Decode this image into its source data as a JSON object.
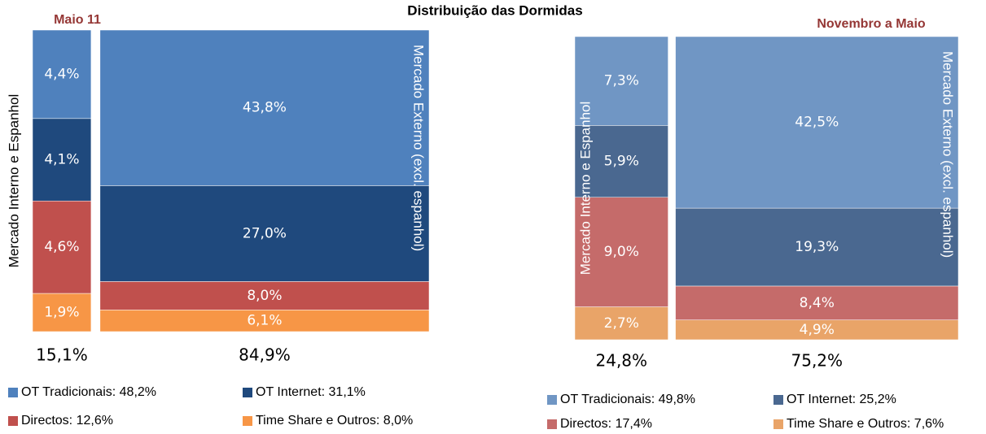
{
  "title": "Distribuição das Dormidas",
  "chart_data": [
    {
      "type": "marimekko",
      "title": "Maio 11",
      "categories": [
        "Mercado Interno e Espanhol",
        "Mercado Externo (excl. espanhol)"
      ],
      "widths": [
        15.1,
        84.9
      ],
      "width_labels": [
        "15,1%",
        "84,9%"
      ],
      "series": [
        {
          "name": "OT Tradicionais: 48,2%",
          "color": "#4f81bd",
          "values": [
            4.4,
            43.8
          ],
          "value_labels": [
            "4,4%",
            "43,8%"
          ]
        },
        {
          "name": "OT Internet: 31,1%",
          "color": "#1f497d",
          "values": [
            4.1,
            27.0
          ],
          "value_labels": [
            "4,1%",
            "27,0%"
          ]
        },
        {
          "name": "Directos: 12,6%",
          "color": "#c0504d",
          "values": [
            4.6,
            8.0
          ],
          "value_labels": [
            "4,6%",
            "8,0%"
          ]
        },
        {
          "name": "Time Share e Outros: 8,0%",
          "color": "#f79646",
          "values": [
            1.9,
            6.1
          ],
          "value_labels": [
            "1,9%",
            "6,1%"
          ]
        }
      ]
    },
    {
      "type": "marimekko",
      "title": "Novembro a Maio",
      "categories": [
        "Mercado Interno e Espanhol",
        "Mercado Externo (excl. espanhol)"
      ],
      "widths": [
        24.8,
        75.2
      ],
      "width_labels": [
        "24,8%",
        "75,2%"
      ],
      "series": [
        {
          "name": "OT Tradicionais: 49,8%",
          "color": "#7096c4",
          "values": [
            7.3,
            42.5
          ],
          "value_labels": [
            "7,3%",
            "42,5%"
          ]
        },
        {
          "name": "OT Internet: 25,2%",
          "color": "#4a6890",
          "values": [
            5.9,
            19.3
          ],
          "value_labels": [
            "5,9%",
            "19,3%"
          ]
        },
        {
          "name": "Directos: 17,4%",
          "color": "#c56b6a",
          "values": [
            9.0,
            8.4
          ],
          "value_labels": [
            "9,0%",
            "8,4%"
          ]
        },
        {
          "name": "Time Share e Outros: 7,6%",
          "color": "#e9a468",
          "values": [
            2.7,
            4.9
          ],
          "value_labels": [
            "2,7%",
            "4,9%"
          ]
        }
      ]
    }
  ]
}
